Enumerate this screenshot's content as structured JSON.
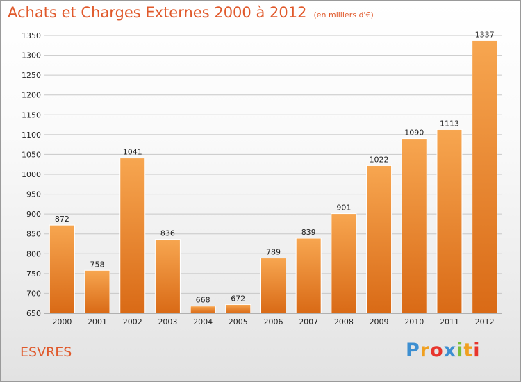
{
  "title": "Achats et Charges Externes 2000 à 2012",
  "subtitle": "(en milliers d'€)",
  "city": "ESVRES",
  "logo": {
    "letters": [
      {
        "ch": "P",
        "color": "#3d8fd1"
      },
      {
        "ch": "r",
        "color": "#f0a020"
      },
      {
        "ch": "o",
        "color": "#e8352d"
      },
      {
        "ch": "x",
        "color": "#3d8fd1"
      },
      {
        "ch": "i",
        "color": "#7bbf3a"
      },
      {
        "ch": "t",
        "color": "#f0a020"
      },
      {
        "ch": "i",
        "color": "#e8352d"
      }
    ]
  },
  "colors": {
    "accent": "#e0592b",
    "bar_top": "#f7a650",
    "bar_bottom": "#d96a16"
  },
  "chart_data": {
    "type": "bar",
    "title": "Achats et Charges Externes 2000 à 2012",
    "subtitle": "(en milliers d'€)",
    "categories": [
      "2000",
      "2001",
      "2002",
      "2003",
      "2004",
      "2005",
      "2006",
      "2007",
      "2008",
      "2009",
      "2010",
      "2011",
      "2012"
    ],
    "values": [
      872,
      758,
      1041,
      836,
      668,
      672,
      789,
      839,
      901,
      1022,
      1090,
      1113,
      1337
    ],
    "ylim": [
      650,
      1350
    ],
    "yticks": [
      650,
      700,
      750,
      800,
      850,
      900,
      950,
      1000,
      1050,
      1100,
      1150,
      1200,
      1250,
      1300,
      1350
    ],
    "grid": true,
    "xlabel": "",
    "ylabel": ""
  }
}
